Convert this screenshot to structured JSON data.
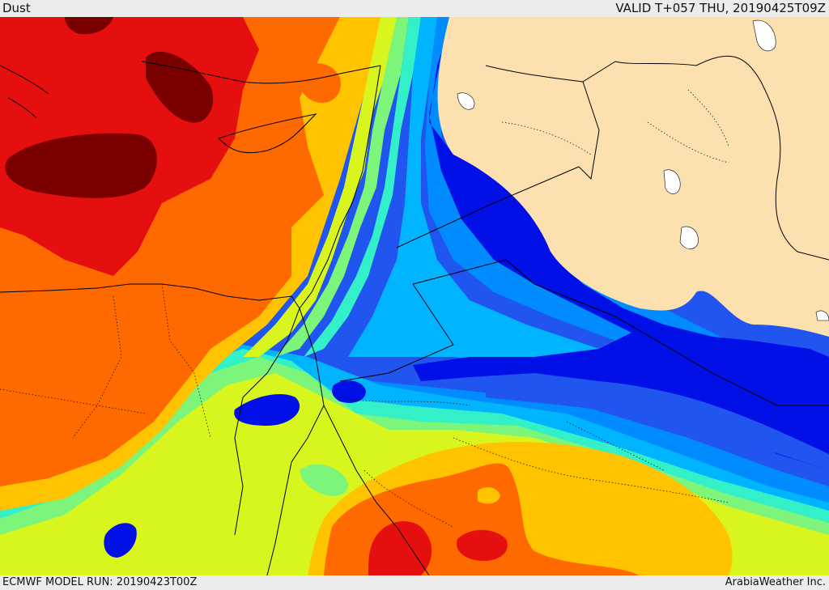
{
  "header": {
    "field_name": "Dust",
    "valid_time": "VALID T+057 THU, 20190425T09Z"
  },
  "footer": {
    "model_run": "ECMWF MODEL RUN: 20190423T00Z",
    "credit": "ArabiaWeather Inc."
  },
  "palette": {
    "max": "#7a0000",
    "red": "#e60f0f",
    "orange": "#ff6a00",
    "amber": "#ffc300",
    "yellow": "#d9f51e",
    "lime": "#7cf57a",
    "aqua": "#33f0c8",
    "cyan": "#00b4ff",
    "sky": "#008cff",
    "blue": "#2055f0",
    "navy": "#0010e6",
    "land_no_data": "#fde0b0",
    "boundary": "#000000"
  }
}
